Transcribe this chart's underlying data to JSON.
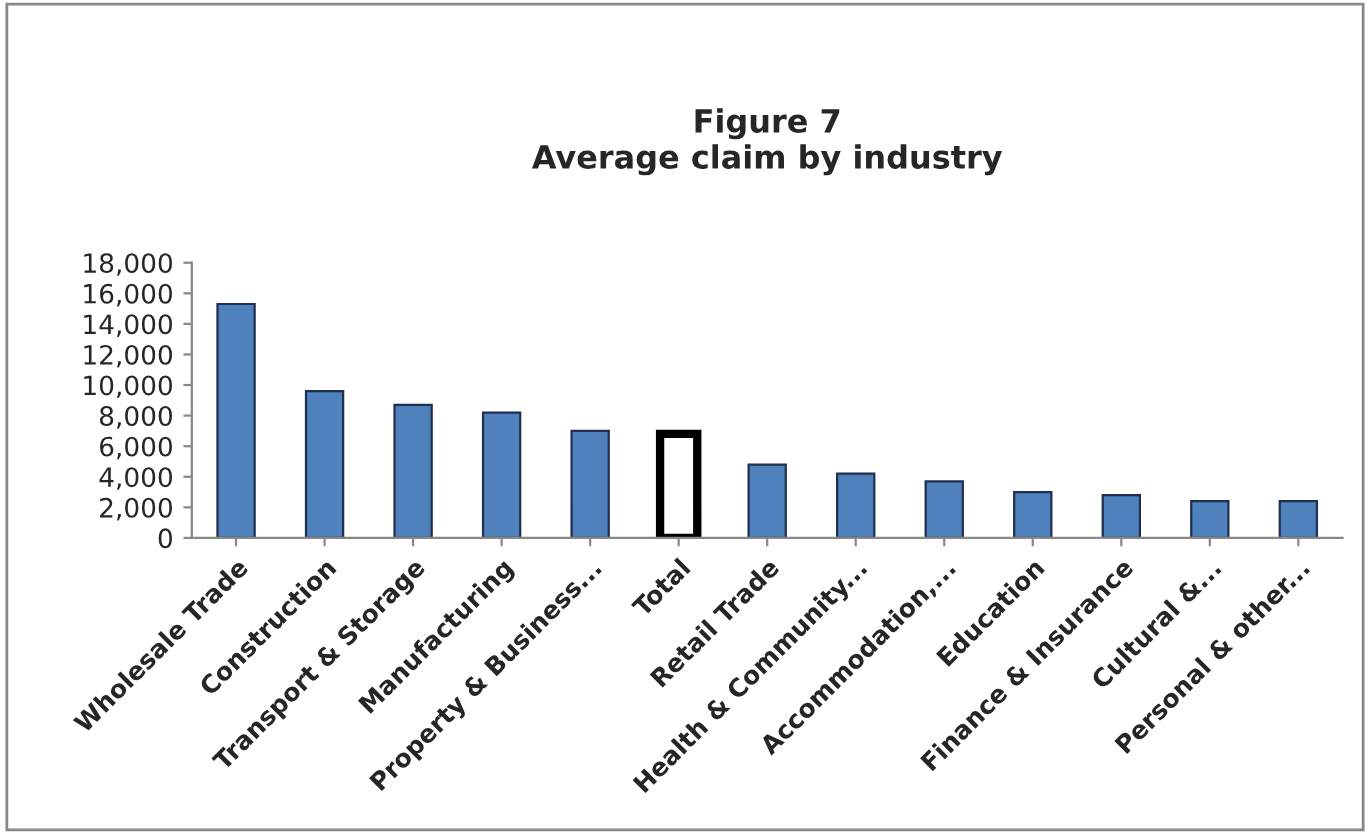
{
  "chart_data": {
    "type": "bar",
    "title": "Figure 7\nAverage claim by industry",
    "categories": [
      "Wholesale Trade",
      "Construction",
      "Transport & Storage",
      "Manufacturing",
      "Property & Business...",
      "Total",
      "Retail Trade",
      "Health & Community...",
      "Accommodation,...",
      "Education",
      "Finance & Insurance",
      "Cultural &...",
      "Personal & other..."
    ],
    "values": [
      15300,
      9600,
      8700,
      8200,
      7000,
      6800,
      4800,
      4200,
      3700,
      3000,
      2800,
      2400,
      2400
    ],
    "colors": [
      "#4f81bd",
      "#4f81bd",
      "#4f81bd",
      "#4f81bd",
      "#4f81bd",
      "#ffffff",
      "#4f81bd",
      "#4f81bd",
      "#4f81bd",
      "#4f81bd",
      "#4f81bd",
      "#4f81bd",
      "#4f81bd"
    ],
    "ylim": [
      0,
      18000
    ],
    "yticks": [
      {
        "value": 0,
        "label": "0"
      },
      {
        "value": 2000,
        "label": "2,000"
      },
      {
        "value": 4000,
        "label": "4,000"
      },
      {
        "value": 6000,
        "label": "6,000"
      },
      {
        "value": 8000,
        "label": "8,000"
      },
      {
        "value": 10000,
        "label": "10,000"
      },
      {
        "value": 12000,
        "label": "12,000"
      },
      {
        "value": 14000,
        "label": "14,000"
      },
      {
        "value": 16000,
        "label": "16,000"
      },
      {
        "value": 18000,
        "label": "18,000"
      }
    ],
    "grid": false,
    "legend": false
  }
}
